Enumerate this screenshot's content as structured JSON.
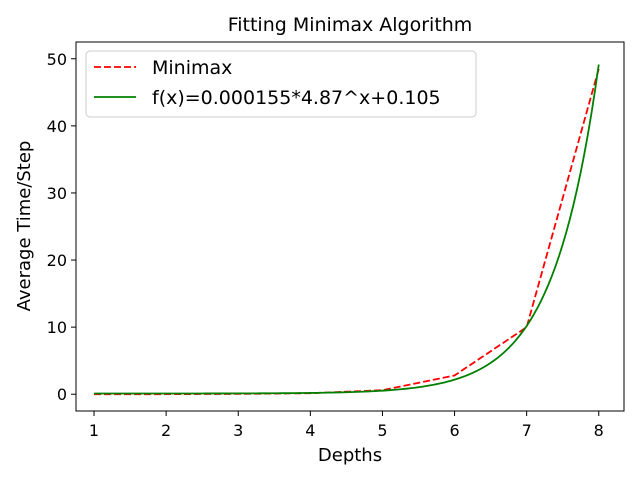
{
  "chart_data": {
    "type": "line",
    "title": "Fitting Minimax Algorithm",
    "xlabel": "Depths",
    "ylabel": "Average Time/Step",
    "xlim": [
      0.75,
      8.35
    ],
    "ylim": [
      -2.5,
      52.5
    ],
    "xticks": [
      1,
      2,
      3,
      4,
      5,
      6,
      7,
      8
    ],
    "yticks": [
      0,
      10,
      20,
      30,
      40,
      50
    ],
    "grid": false,
    "legend_position": "top-left",
    "series": [
      {
        "name": "Minimax",
        "style": "dashed",
        "color": "#ff0000",
        "x": [
          1,
          2,
          3,
          4,
          5,
          6,
          7,
          8
        ],
        "y": [
          0.0,
          0.01,
          0.05,
          0.15,
          0.6,
          2.8,
          10.0,
          48.5
        ]
      },
      {
        "name": "f(x)=0.000155*4.87^x+0.105",
        "style": "solid",
        "color": "#008000",
        "formula": {
          "a": 0.000155,
          "b": 4.87,
          "c": 0.105
        },
        "x_range": [
          1,
          8
        ]
      }
    ]
  }
}
